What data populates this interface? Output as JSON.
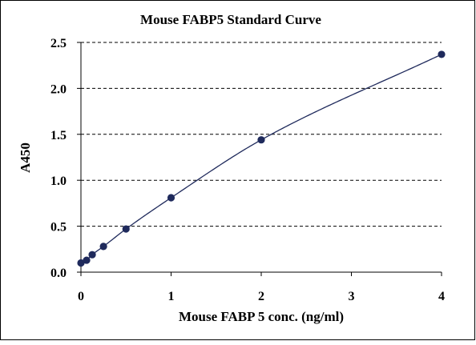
{
  "chart_data": {
    "type": "scatter",
    "title": "Mouse FABP5  Standard Curve",
    "xlabel": "Mouse FABP 5  conc. (ng/ml)",
    "ylabel": "A450",
    "xlim": [
      0,
      4
    ],
    "ylim": [
      0,
      2.5
    ],
    "x_ticks": [
      "0",
      "1",
      "2",
      "3",
      "4"
    ],
    "y_ticks": [
      "0.0",
      "0.5",
      "1.0",
      "1.5",
      "2.0",
      "2.5"
    ],
    "grid": "horizontal dashed",
    "legend": "none",
    "series": [
      {
        "points": [
          {
            "x": 0,
            "y": 0.1
          },
          {
            "x": 0.0625,
            "y": 0.13
          },
          {
            "x": 0.125,
            "y": 0.19
          },
          {
            "x": 0.25,
            "y": 0.28
          },
          {
            "x": 0.5,
            "y": 0.47
          },
          {
            "x": 1,
            "y": 0.81
          },
          {
            "x": 2,
            "y": 1.44
          },
          {
            "x": 4,
            "y": 2.37
          }
        ],
        "color": "#1f2a5c",
        "marker": "circle"
      }
    ],
    "trendline": {
      "type": "smooth curve",
      "color": "#1f2a5c"
    }
  }
}
